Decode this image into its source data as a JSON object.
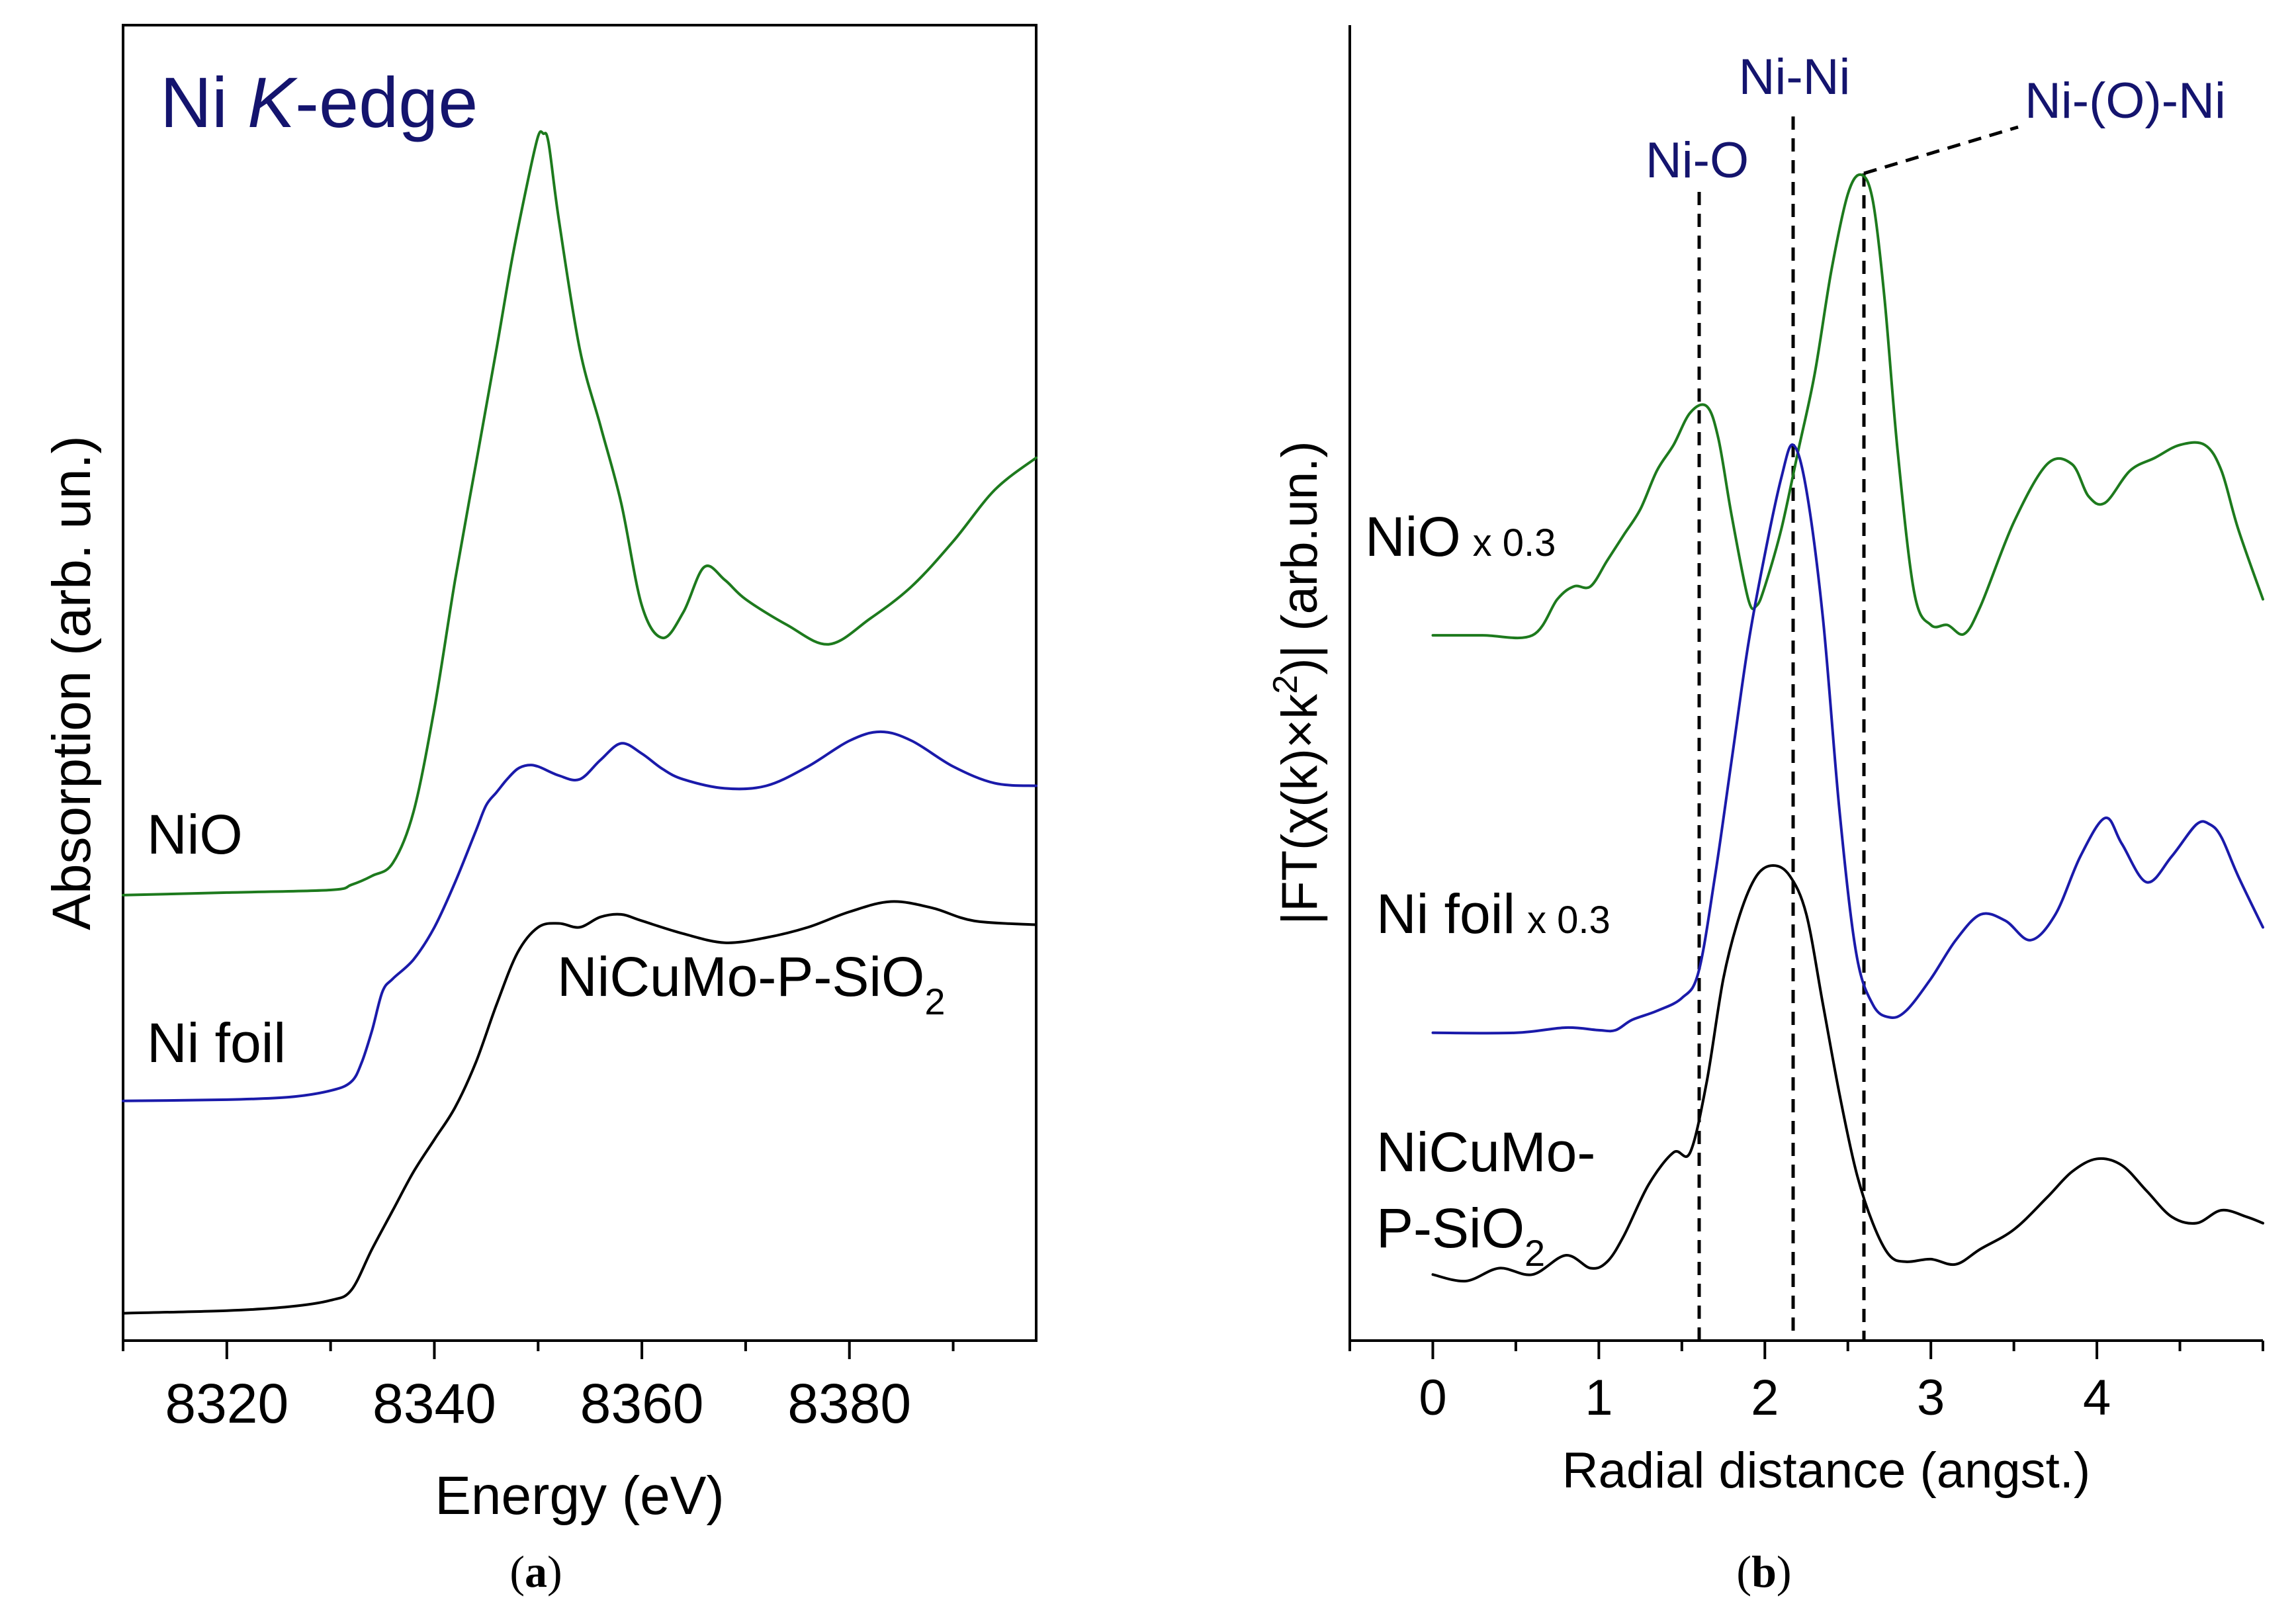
{
  "colors": {
    "nio": "#1d7a1d",
    "ni_foil": "#1a1aaa",
    "nicumo": "#000000",
    "annotation": "#14146e"
  },
  "chart_data": [
    {
      "type": "line",
      "panel_label_bold": "a",
      "panel_label": "(a)",
      "title": "Ni K-edge",
      "title_parts": [
        "Ni ",
        "K",
        "-edge"
      ],
      "xlabel": "Energy (eV)",
      "ylabel": "Absorption (arb. un.)",
      "xlim": [
        8310,
        8398
      ],
      "ylim": [
        0,
        1
      ],
      "xticks": [
        8320,
        8340,
        8360,
        8380
      ],
      "xtick_labels": [
        "8320",
        "8340",
        "8360",
        "8380"
      ],
      "series": [
        {
          "name": "NiO",
          "label": "NiO",
          "color": "#1d7a1d",
          "x": [
            8310,
            8320,
            8330,
            8332,
            8334,
            8336,
            8338,
            8340,
            8342,
            8344,
            8346,
            8347.5,
            8349,
            8350,
            8350.5,
            8351,
            8352,
            8354,
            8356,
            8358,
            8360,
            8362,
            8364,
            8366,
            8368,
            8370,
            8374,
            8378,
            8382,
            8386,
            8390,
            8394,
            8398
          ],
          "y": [
            0.335,
            0.337,
            0.339,
            0.343,
            0.35,
            0.36,
            0.4,
            0.48,
            0.58,
            0.67,
            0.76,
            0.83,
            0.89,
            0.925,
            0.927,
            0.92,
            0.86,
            0.76,
            0.7,
            0.64,
            0.56,
            0.535,
            0.555,
            0.59,
            0.58,
            0.565,
            0.545,
            0.53,
            0.55,
            0.575,
            0.61,
            0.65,
            0.675
          ]
        },
        {
          "name": "Ni foil",
          "label": "Ni foil",
          "color": "#1a1aaa",
          "x": [
            8310,
            8320,
            8326,
            8330,
            8332,
            8333,
            8334,
            8335,
            8336,
            8338,
            8340,
            8342,
            8344,
            8345,
            8346,
            8347,
            8348,
            8349,
            8350,
            8352,
            8354,
            8356,
            8358,
            8360,
            8362,
            8364,
            8368,
            8372,
            8376,
            8380,
            8383,
            8386,
            8390,
            8394,
            8398
          ],
          "y": [
            0.175,
            0.176,
            0.178,
            0.183,
            0.19,
            0.205,
            0.23,
            0.26,
            0.27,
            0.285,
            0.31,
            0.345,
            0.385,
            0.405,
            0.415,
            0.425,
            0.433,
            0.436,
            0.435,
            0.428,
            0.425,
            0.44,
            0.453,
            0.445,
            0.433,
            0.425,
            0.418,
            0.42,
            0.435,
            0.455,
            0.462,
            0.455,
            0.435,
            0.422,
            0.42
          ]
        },
        {
          "name": "NiCuMo-P-SiO2",
          "label": "NiCuMo-P-SiO",
          "label_subscript": "2",
          "color": "#000000",
          "x": [
            8310,
            8320,
            8326,
            8330,
            8332,
            8334,
            8336,
            8338,
            8340,
            8342,
            8344,
            8346,
            8348,
            8350,
            8352,
            8354,
            8356,
            8358,
            8360,
            8364,
            8368,
            8372,
            8376,
            8380,
            8384,
            8388,
            8392,
            8398
          ],
          "y": [
            0.01,
            0.012,
            0.015,
            0.02,
            0.028,
            0.06,
            0.09,
            0.12,
            0.145,
            0.17,
            0.205,
            0.25,
            0.29,
            0.31,
            0.313,
            0.31,
            0.318,
            0.32,
            0.315,
            0.305,
            0.298,
            0.302,
            0.31,
            0.322,
            0.33,
            0.325,
            0.315,
            0.312
          ]
        }
      ]
    },
    {
      "type": "line",
      "panel_label_bold": "b",
      "panel_label": "(b)",
      "xlabel": "Radial distance (angst.)",
      "ylabel_main": "|FT(χ(k)×k",
      "ylabel_superscript": "2",
      "ylabel_tail": ")| (arb.un.)",
      "xlim": [
        -0.5,
        5.0
      ],
      "ylim": [
        0,
        1
      ],
      "xticks": [
        0,
        1,
        2,
        3,
        4
      ],
      "xtick_labels": [
        "0",
        "1",
        "2",
        "3",
        "4"
      ],
      "annotations": [
        {
          "text": "Ni-O",
          "x": 1.6
        },
        {
          "text": "Ni-Ni",
          "x": 2.17
        },
        {
          "text": "Ni-(O)-Ni",
          "x": 2.6
        }
      ],
      "series": [
        {
          "name": "NiO x 0.3",
          "label": "NiO",
          "scale_label": "x 0.3",
          "color": "#1d7a1d",
          "x": [
            0,
            0.3,
            0.6,
            0.75,
            0.85,
            0.95,
            1.05,
            1.15,
            1.25,
            1.35,
            1.45,
            1.55,
            1.65,
            1.72,
            1.8,
            1.9,
            1.95,
            2.0,
            2.1,
            2.2,
            2.3,
            2.4,
            2.5,
            2.58,
            2.65,
            2.72,
            2.8,
            2.9,
            3.0,
            3.1,
            3.2,
            3.3,
            3.5,
            3.7,
            3.85,
            3.95,
            4.05,
            4.2,
            4.35,
            4.5,
            4.65,
            4.75,
            4.85,
            5.0
          ],
          "y": [
            0.537,
            0.537,
            0.537,
            0.565,
            0.575,
            0.575,
            0.595,
            0.615,
            0.635,
            0.665,
            0.685,
            0.71,
            0.715,
            0.69,
            0.63,
            0.565,
            0.56,
            0.575,
            0.62,
            0.68,
            0.74,
            0.82,
            0.88,
            0.895,
            0.875,
            0.8,
            0.68,
            0.57,
            0.545,
            0.545,
            0.538,
            0.56,
            0.625,
            0.67,
            0.67,
            0.645,
            0.64,
            0.665,
            0.675,
            0.685,
            0.685,
            0.665,
            0.62,
            0.565
          ]
        },
        {
          "name": "Ni foil x 0.3",
          "label": "Ni foil",
          "scale_label": "x 0.3",
          "color": "#1a1aaa",
          "x": [
            0,
            0.5,
            0.8,
            1.0,
            1.1,
            1.2,
            1.35,
            1.5,
            1.6,
            1.7,
            1.8,
            1.9,
            2.0,
            2.1,
            2.17,
            2.25,
            2.35,
            2.45,
            2.55,
            2.65,
            2.75,
            2.85,
            3.0,
            3.15,
            3.3,
            3.45,
            3.6,
            3.75,
            3.9,
            4.05,
            4.15,
            4.3,
            4.45,
            4.6,
            4.68,
            4.75,
            4.85,
            5.0
          ],
          "y": [
            0.228,
            0.228,
            0.232,
            0.23,
            0.23,
            0.238,
            0.245,
            0.255,
            0.275,
            0.35,
            0.44,
            0.53,
            0.6,
            0.66,
            0.685,
            0.65,
            0.55,
            0.4,
            0.29,
            0.25,
            0.24,
            0.245,
            0.27,
            0.3,
            0.32,
            0.315,
            0.3,
            0.32,
            0.365,
            0.395,
            0.375,
            0.345,
            0.365,
            0.39,
            0.39,
            0.38,
            0.35,
            0.31
          ]
        },
        {
          "name": "NiCuMo-P-SiO2",
          "label_line1": "NiCuMo-",
          "label_line2": "P-SiO",
          "label_subscript": "2",
          "color": "#000000",
          "x": [
            0,
            0.2,
            0.4,
            0.6,
            0.8,
            0.95,
            1.05,
            1.15,
            1.3,
            1.45,
            1.55,
            1.65,
            1.75,
            1.85,
            1.95,
            2.05,
            2.15,
            2.25,
            2.35,
            2.45,
            2.55,
            2.65,
            2.75,
            2.85,
            3.0,
            3.15,
            3.3,
            3.5,
            3.7,
            3.85,
            4.0,
            4.15,
            4.3,
            4.45,
            4.6,
            4.75,
            4.9,
            5.0
          ],
          "y": [
            0.04,
            0.035,
            0.045,
            0.04,
            0.055,
            0.045,
            0.05,
            0.07,
            0.11,
            0.135,
            0.135,
            0.19,
            0.27,
            0.32,
            0.35,
            0.358,
            0.35,
            0.32,
            0.25,
            0.18,
            0.12,
            0.08,
            0.055,
            0.05,
            0.052,
            0.048,
            0.06,
            0.075,
            0.1,
            0.12,
            0.13,
            0.125,
            0.105,
            0.085,
            0.08,
            0.09,
            0.085,
            0.08
          ]
        }
      ]
    }
  ]
}
